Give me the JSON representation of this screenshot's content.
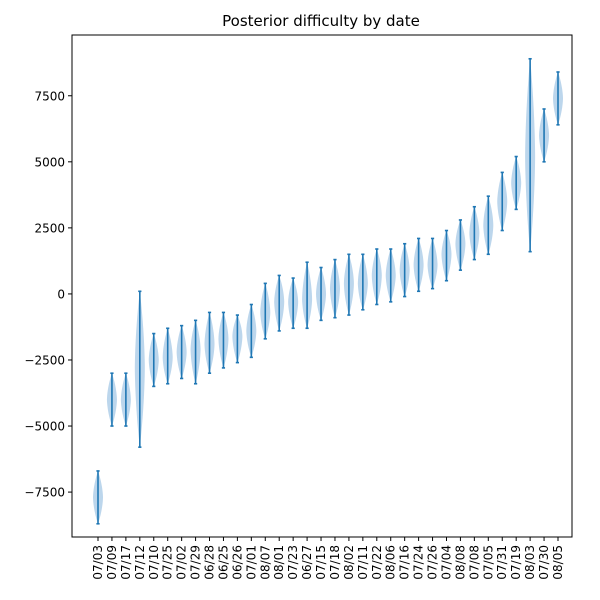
{
  "chart_data": {
    "type": "violin",
    "title": "Posterior difficulty by date",
    "xlabel": "",
    "ylabel": "",
    "ylim": [
      -9200,
      9800
    ],
    "yticks": [
      -7500,
      -5000,
      -2500,
      0,
      2500,
      5000,
      7500
    ],
    "ytick_labels": [
      "−7500",
      "−5000",
      "−2500",
      "0",
      "2500",
      "5000",
      "7500"
    ],
    "colors": {
      "extrema": "#1f77b4",
      "body": "#a6c8e6"
    },
    "categories": [
      "07/03",
      "07/09",
      "07/17",
      "07/12",
      "07/10",
      "07/25",
      "07/02",
      "07/29",
      "06/28",
      "06/25",
      "06/26",
      "07/01",
      "08/07",
      "08/01",
      "07/23",
      "06/27",
      "07/15",
      "07/18",
      "08/02",
      "07/11",
      "07/22",
      "08/06",
      "07/16",
      "07/24",
      "07/26",
      "07/04",
      "08/08",
      "07/08",
      "07/05",
      "07/31",
      "07/19",
      "08/03",
      "07/30",
      "08/05"
    ],
    "series": [
      {
        "x": "07/03",
        "min": -8700,
        "max": -6700,
        "median": -7700
      },
      {
        "x": "07/09",
        "min": -5000,
        "max": -3000,
        "median": -4000
      },
      {
        "x": "07/17",
        "min": -5000,
        "max": -3000,
        "median": -4000
      },
      {
        "x": "07/12",
        "min": -5800,
        "max": 100,
        "median": -2800
      },
      {
        "x": "07/10",
        "min": -3500,
        "max": -1500,
        "median": -2500
      },
      {
        "x": "07/25",
        "min": -3400,
        "max": -1300,
        "median": -2400
      },
      {
        "x": "07/02",
        "min": -3200,
        "max": -1200,
        "median": -2200
      },
      {
        "x": "07/29",
        "min": -3400,
        "max": -1000,
        "median": -2100
      },
      {
        "x": "06/28",
        "min": -3000,
        "max": -700,
        "median": -1900
      },
      {
        "x": "06/25",
        "min": -2800,
        "max": -700,
        "median": -1700
      },
      {
        "x": "06/26",
        "min": -2600,
        "max": -800,
        "median": -1600
      },
      {
        "x": "07/01",
        "min": -2400,
        "max": -400,
        "median": -1400
      },
      {
        "x": "08/07",
        "min": -1700,
        "max": 400,
        "median": -700
      },
      {
        "x": "08/01",
        "min": -1400,
        "max": 700,
        "median": -300
      },
      {
        "x": "07/23",
        "min": -1300,
        "max": 600,
        "median": -300
      },
      {
        "x": "06/27",
        "min": -1300,
        "max": 1200,
        "median": -200
      },
      {
        "x": "07/15",
        "min": -1000,
        "max": 1000,
        "median": 0
      },
      {
        "x": "07/18",
        "min": -900,
        "max": 1300,
        "median": 200
      },
      {
        "x": "08/02",
        "min": -800,
        "max": 1500,
        "median": 400
      },
      {
        "x": "07/11",
        "min": -600,
        "max": 1500,
        "median": 400
      },
      {
        "x": "07/22",
        "min": -400,
        "max": 1700,
        "median": 700
      },
      {
        "x": "08/06",
        "min": -300,
        "max": 1700,
        "median": 700
      },
      {
        "x": "07/16",
        "min": -100,
        "max": 1900,
        "median": 900
      },
      {
        "x": "07/24",
        "min": 100,
        "max": 2100,
        "median": 1100
      },
      {
        "x": "07/26",
        "min": 200,
        "max": 2100,
        "median": 1100
      },
      {
        "x": "07/04",
        "min": 500,
        "max": 2400,
        "median": 1500
      },
      {
        "x": "08/08",
        "min": 900,
        "max": 2800,
        "median": 1900
      },
      {
        "x": "07/08",
        "min": 1300,
        "max": 3300,
        "median": 2300
      },
      {
        "x": "07/05",
        "min": 1500,
        "max": 3700,
        "median": 2600
      },
      {
        "x": "07/31",
        "min": 2400,
        "max": 4600,
        "median": 3500
      },
      {
        "x": "07/19",
        "min": 3200,
        "max": 5200,
        "median": 4200
      },
      {
        "x": "08/03",
        "min": 1600,
        "max": 8900,
        "median": 5200
      },
      {
        "x": "07/30",
        "min": 5000,
        "max": 7000,
        "median": 6000
      },
      {
        "x": "08/05",
        "min": 6400,
        "max": 8400,
        "median": 7400
      }
    ]
  }
}
